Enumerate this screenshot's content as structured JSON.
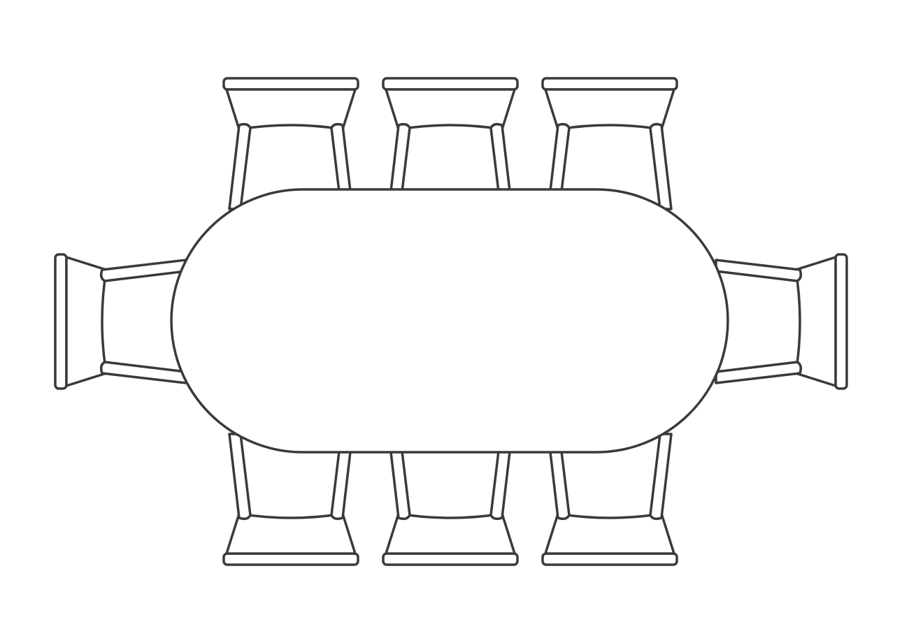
{
  "diagram": {
    "type": "floor-plan",
    "table": {
      "shape": "racetrack-oval",
      "icon": "table-top-icon"
    },
    "chairs": [
      {
        "side": "top",
        "icon": "chair-icon"
      },
      {
        "side": "top",
        "icon": "chair-icon"
      },
      {
        "side": "top",
        "icon": "chair-icon"
      },
      {
        "side": "bottom",
        "icon": "chair-icon"
      },
      {
        "side": "bottom",
        "icon": "chair-icon"
      },
      {
        "side": "bottom",
        "icon": "chair-icon"
      },
      {
        "side": "left",
        "icon": "chair-icon"
      },
      {
        "side": "right",
        "icon": "chair-icon"
      }
    ],
    "colors": {
      "outline": "#3a3a3a",
      "fill": "#ffffff",
      "background": "#ffffff"
    }
  }
}
